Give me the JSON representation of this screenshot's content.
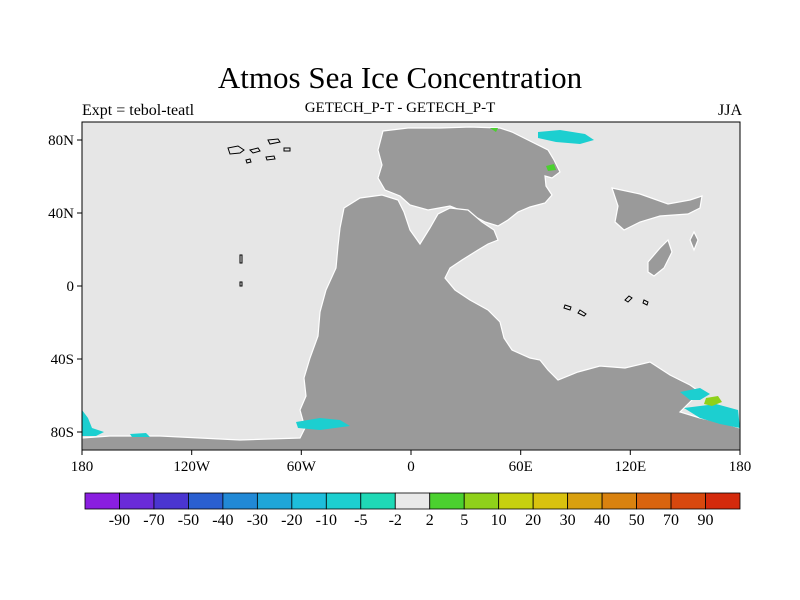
{
  "title": "Atmos Sea Ice Concentration",
  "subtitle_left": "Expt = tebol-teatl",
  "subtitle_center": "GETECH_P-T - GETECH_P-T",
  "subtitle_right": "JJA",
  "map": {
    "ocean_color": "#e6e6e6",
    "land_color": "#9a9a9a",
    "lon_ticks": [
      "180",
      "120W",
      "60W",
      "0",
      "60E",
      "120E",
      "180"
    ],
    "lat_ticks": [
      "80N",
      "40N",
      "0",
      "40S",
      "80S"
    ]
  },
  "colorbar": {
    "labels": [
      "-90",
      "-70",
      "-50",
      "-40",
      "-30",
      "-20",
      "-10",
      "-5",
      "-2",
      "2",
      "5",
      "10",
      "20",
      "30",
      "40",
      "50",
      "70",
      "90"
    ],
    "colors": [
      "#8a1ee0",
      "#6a2bd8",
      "#4a35d0",
      "#2a5fd0",
      "#2189d6",
      "#1fa6d8",
      "#1dbedb",
      "#1ccfd0",
      "#1fd9b6",
      "#e9e9e9",
      "#4bd12f",
      "#8fd11a",
      "#c7d10f",
      "#d9c20e",
      "#d9a00f",
      "#d9820f",
      "#d9640e",
      "#d8480e",
      "#d42a0c"
    ]
  }
}
